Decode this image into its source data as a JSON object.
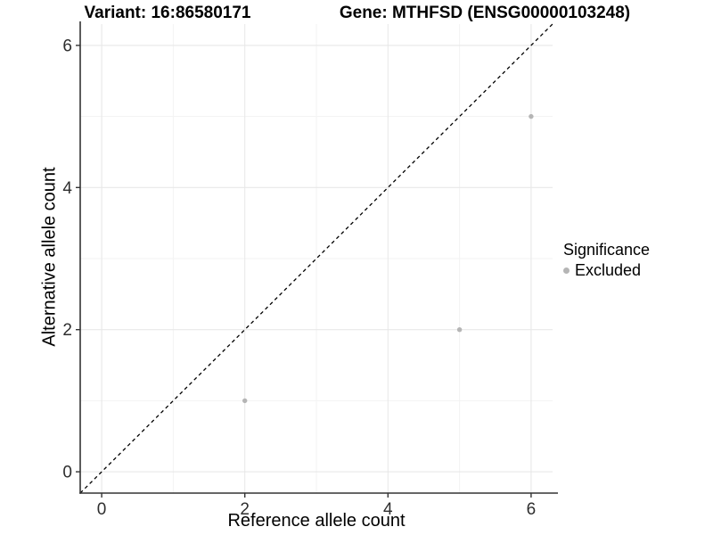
{
  "header": {
    "variant_title": "Variant: 16:86580171",
    "gene_title": "Gene: MTHFSD (ENSG00000103248)"
  },
  "axes": {
    "x_label": "Reference allele count",
    "y_label": "Alternative allele count"
  },
  "legend": {
    "title": "Significance",
    "position": "right",
    "items": [
      {
        "label": "Excluded",
        "color": "#b5b5b5",
        "marker": "circle-icon"
      }
    ]
  },
  "chart_data": {
    "type": "scatter",
    "title": "Variant: 16:86580171",
    "subtitle": "Gene: MTHFSD (ENSG00000103248)",
    "xlabel": "Reference allele count",
    "ylabel": "Alternative allele count",
    "xlim": [
      -0.3,
      6.3
    ],
    "ylim": [
      -0.3,
      6.3
    ],
    "x_ticks": [
      0,
      2,
      4,
      6
    ],
    "y_ticks": [
      0,
      2,
      4,
      6
    ],
    "minor_grid_x": [
      1,
      3,
      5
    ],
    "minor_grid_y": [
      1,
      3,
      5
    ],
    "grid": "major and minor gridlines at integer values",
    "legend_position": "right",
    "series": [
      {
        "name": "Excluded",
        "color": "#b5b5b5",
        "points": [
          {
            "x": 2,
            "y": 1
          },
          {
            "x": 5,
            "y": 2
          },
          {
            "x": 6,
            "y": 5
          }
        ]
      }
    ],
    "reference_line": {
      "kind": "identity y = x",
      "style": "dashed",
      "color": "#000000",
      "from": [
        -0.3,
        -0.3
      ],
      "to": [
        6.3,
        6.3
      ]
    }
  },
  "colors": {
    "background": "#ffffff",
    "axis_line": "#333333",
    "tick_label": "#2e2e2e",
    "grid_major": "#e8e8e8",
    "grid_minor": "#f3f3f3",
    "point": "#b5b5b5",
    "ref_line": "#000000",
    "title_text": "#000000"
  }
}
